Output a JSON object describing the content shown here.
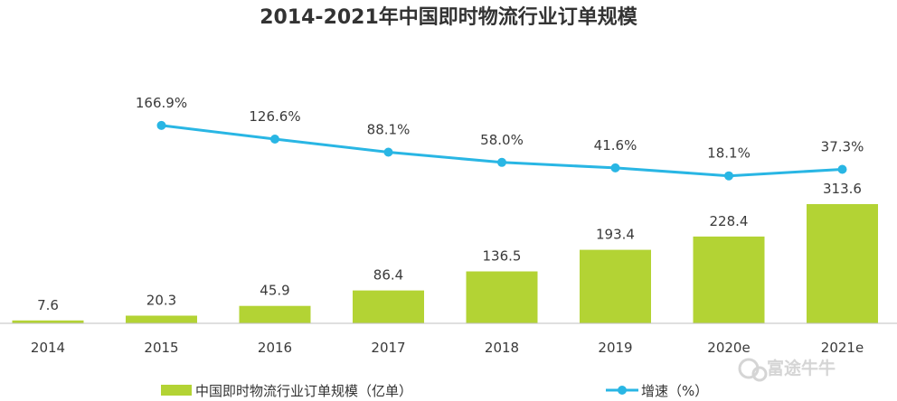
{
  "chart_data": {
    "type": "bar",
    "title": "2014-2021年中国即时物流行业订单规模",
    "categories": [
      "2014",
      "2015",
      "2016",
      "2017",
      "2018",
      "2019",
      "2020e",
      "2021e"
    ],
    "series": [
      {
        "name": "中国即时物流行业订单规模（亿单）",
        "type": "bar",
        "values": [
          7.6,
          20.3,
          45.9,
          86.4,
          136.5,
          193.4,
          228.4,
          313.6
        ],
        "labels": [
          "7.6",
          "20.3",
          "45.9",
          "86.4",
          "136.5",
          "193.4",
          "228.4",
          "313.6"
        ],
        "color": "#b3d334"
      },
      {
        "name": "增速（%）",
        "type": "line",
        "values": [
          null,
          166.9,
          126.6,
          88.1,
          58.0,
          41.6,
          18.1,
          37.3
        ],
        "labels": [
          "",
          "166.9%",
          "126.6%",
          "88.1%",
          "58.0%",
          "41.6%",
          "18.1%",
          "37.3%"
        ],
        "color": "#29b6e4"
      }
    ],
    "grid": false,
    "legend_position": "bottom"
  },
  "watermark": {
    "text": "富途牛牛",
    "icon": "futu-logo-icon"
  }
}
